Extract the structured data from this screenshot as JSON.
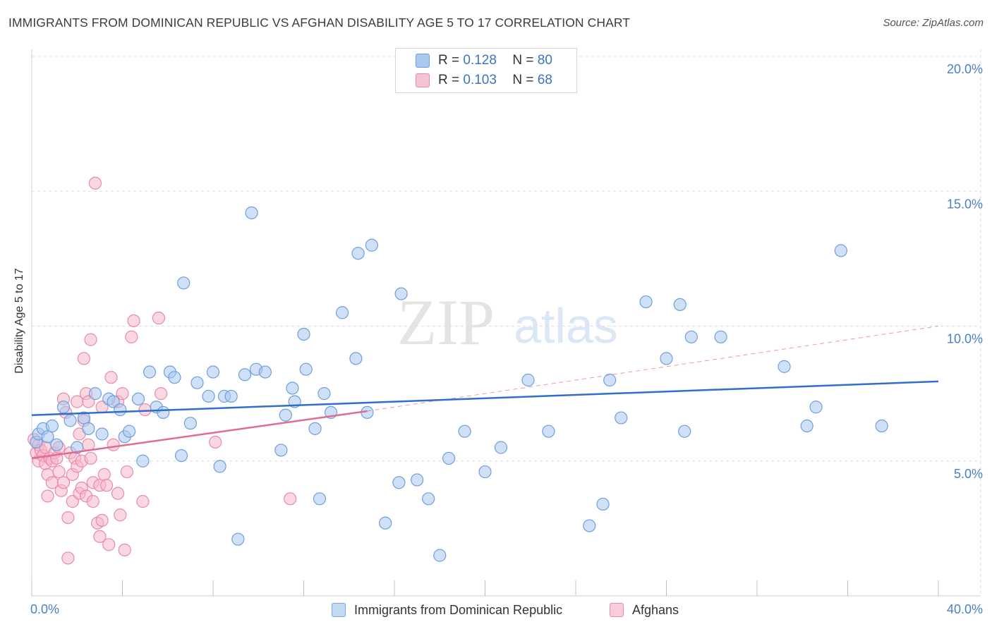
{
  "header": {
    "title": "IMMIGRANTS FROM DOMINICAN REPUBLIC VS AFGHAN DISABILITY AGE 5 TO 17 CORRELATION CHART",
    "source": "Source: ZipAtlas.com"
  },
  "watermark": {
    "zip": "ZIP",
    "atlas": "atlas"
  },
  "legend": {
    "rows": [
      {
        "r_label": "R =",
        "r_value": "0.128",
        "n_label": "N =",
        "n_value": "80"
      },
      {
        "r_label": "R =",
        "r_value": "0.103",
        "n_label": "N =",
        "n_value": "68"
      }
    ]
  },
  "bottom_legend": {
    "series1": "Immigrants from Dominican Republic",
    "series2": "Afghans"
  },
  "colors": {
    "blue_fill": "#aac8f0",
    "blue_stroke": "#6f9fdc",
    "blue_line": "#2f6fc9",
    "pink_fill": "#f5b8cb",
    "pink_stroke": "#e98aa8",
    "pink_line": "#e06b93",
    "grid": "#dddddd",
    "axis_text": "#4a7fc8"
  },
  "chart_data": {
    "type": "scatter",
    "title": "IMMIGRANTS FROM DOMINICAN REPUBLIC VS AFGHAN DISABILITY AGE 5 TO 17 CORRELATION CHART",
    "xlabel": "",
    "ylabel": "Disability Age 5 to 17",
    "xlim": [
      0,
      40
    ],
    "ylim": [
      0,
      20.5
    ],
    "x_tick_labels": [
      "0.0%",
      "40.0%"
    ],
    "y_ticks": [
      5,
      10,
      15,
      20
    ],
    "y_tick_labels": [
      "5.0%",
      "10.0%",
      "15.0%",
      "20.0%"
    ],
    "grid": true,
    "series": [
      {
        "name": "Immigrants from Dominican Republic",
        "r": 0.128,
        "n": 80,
        "trend": {
          "x": [
            0,
            40
          ],
          "y": [
            6.7,
            7.95
          ]
        },
        "points": [
          [
            0.2,
            5.7
          ],
          [
            0.3,
            6.0
          ],
          [
            0.5,
            6.2
          ],
          [
            0.7,
            5.9
          ],
          [
            0.9,
            6.3
          ],
          [
            1.1,
            5.6
          ],
          [
            1.4,
            7.0
          ],
          [
            1.7,
            6.5
          ],
          [
            2.0,
            5.5
          ],
          [
            2.3,
            6.6
          ],
          [
            2.5,
            6.2
          ],
          [
            2.8,
            7.5
          ],
          [
            3.1,
            6.0
          ],
          [
            3.4,
            7.3
          ],
          [
            3.6,
            7.2
          ],
          [
            3.9,
            6.9
          ],
          [
            4.1,
            5.9
          ],
          [
            4.3,
            6.1
          ],
          [
            4.7,
            7.3
          ],
          [
            4.9,
            5.0
          ],
          [
            5.2,
            8.3
          ],
          [
            5.5,
            7.0
          ],
          [
            5.8,
            6.8
          ],
          [
            6.1,
            8.3
          ],
          [
            6.3,
            8.1
          ],
          [
            6.6,
            5.2
          ],
          [
            6.7,
            11.6
          ],
          [
            7.0,
            6.4
          ],
          [
            7.3,
            7.9
          ],
          [
            7.8,
            7.4
          ],
          [
            8.0,
            8.3
          ],
          [
            8.3,
            4.8
          ],
          [
            8.5,
            7.4
          ],
          [
            8.8,
            7.4
          ],
          [
            9.1,
            2.1
          ],
          [
            9.4,
            8.2
          ],
          [
            9.7,
            14.2
          ],
          [
            9.9,
            8.4
          ],
          [
            10.3,
            8.3
          ],
          [
            11.0,
            5.4
          ],
          [
            11.2,
            6.7
          ],
          [
            11.5,
            7.7
          ],
          [
            11.6,
            7.2
          ],
          [
            12.0,
            9.7
          ],
          [
            12.1,
            8.4
          ],
          [
            12.5,
            6.2
          ],
          [
            12.7,
            3.6
          ],
          [
            12.9,
            7.5
          ],
          [
            13.2,
            6.8
          ],
          [
            13.7,
            10.5
          ],
          [
            14.3,
            8.8
          ],
          [
            14.4,
            12.7
          ],
          [
            14.8,
            6.8
          ],
          [
            15.0,
            13.0
          ],
          [
            15.6,
            2.7
          ],
          [
            16.2,
            4.2
          ],
          [
            16.3,
            11.2
          ],
          [
            17.0,
            4.3
          ],
          [
            17.5,
            3.6
          ],
          [
            18.0,
            1.5
          ],
          [
            18.4,
            5.1
          ],
          [
            19.1,
            6.1
          ],
          [
            20.0,
            4.6
          ],
          [
            20.7,
            5.5
          ],
          [
            21.9,
            8.0
          ],
          [
            22.8,
            6.1
          ],
          [
            24.6,
            2.6
          ],
          [
            25.2,
            3.4
          ],
          [
            25.5,
            8.0
          ],
          [
            26.0,
            6.6
          ],
          [
            27.1,
            10.9
          ],
          [
            28.0,
            8.8
          ],
          [
            28.6,
            10.8
          ],
          [
            28.8,
            6.1
          ],
          [
            29.1,
            9.6
          ],
          [
            30.4,
            9.6
          ],
          [
            33.2,
            8.5
          ],
          [
            34.2,
            6.3
          ],
          [
            34.6,
            7.0
          ],
          [
            35.7,
            12.8
          ],
          [
            37.5,
            6.3
          ]
        ]
      },
      {
        "name": "Afghans",
        "r": 0.103,
        "n": 68,
        "trend": {
          "x": [
            0,
            14.8
          ],
          "y": [
            5.1,
            6.85
          ]
        },
        "trend_extension": {
          "x": [
            14.8,
            40
          ],
          "y": [
            6.85,
            10.0
          ]
        },
        "points": [
          [
            0.1,
            5.8
          ],
          [
            0.2,
            5.3
          ],
          [
            0.3,
            5.6
          ],
          [
            0.3,
            5.0
          ],
          [
            0.4,
            5.4
          ],
          [
            0.5,
            5.2
          ],
          [
            0.6,
            4.9
          ],
          [
            0.6,
            5.5
          ],
          [
            0.7,
            4.5
          ],
          [
            0.7,
            3.7
          ],
          [
            0.8,
            5.1
          ],
          [
            0.9,
            5.0
          ],
          [
            0.9,
            4.2
          ],
          [
            1.0,
            5.3
          ],
          [
            1.1,
            5.1
          ],
          [
            1.2,
            5.5
          ],
          [
            1.2,
            4.6
          ],
          [
            1.3,
            3.9
          ],
          [
            1.4,
            4.2
          ],
          [
            1.4,
            7.3
          ],
          [
            1.5,
            6.8
          ],
          [
            1.6,
            2.9
          ],
          [
            1.6,
            1.4
          ],
          [
            1.7,
            5.3
          ],
          [
            1.8,
            4.5
          ],
          [
            1.8,
            3.5
          ],
          [
            1.9,
            5.1
          ],
          [
            2.0,
            4.8
          ],
          [
            2.0,
            7.2
          ],
          [
            2.1,
            6.0
          ],
          [
            2.1,
            3.8
          ],
          [
            2.2,
            5.0
          ],
          [
            2.2,
            4.0
          ],
          [
            2.3,
            8.8
          ],
          [
            2.3,
            6.5
          ],
          [
            2.4,
            7.5
          ],
          [
            2.4,
            3.7
          ],
          [
            2.5,
            5.6
          ],
          [
            2.5,
            7.2
          ],
          [
            2.6,
            5.1
          ],
          [
            2.6,
            9.5
          ],
          [
            2.7,
            4.2
          ],
          [
            2.7,
            3.5
          ],
          [
            2.8,
            15.3
          ],
          [
            2.9,
            2.7
          ],
          [
            3.0,
            2.2
          ],
          [
            3.0,
            4.1
          ],
          [
            3.1,
            2.8
          ],
          [
            3.1,
            7.0
          ],
          [
            3.2,
            4.5
          ],
          [
            3.3,
            4.1
          ],
          [
            3.4,
            1.9
          ],
          [
            3.5,
            8.1
          ],
          [
            3.6,
            5.6
          ],
          [
            3.8,
            3.8
          ],
          [
            3.8,
            7.2
          ],
          [
            3.9,
            3.0
          ],
          [
            4.0,
            7.5
          ],
          [
            4.1,
            1.7
          ],
          [
            4.2,
            4.6
          ],
          [
            4.4,
            9.6
          ],
          [
            4.5,
            10.2
          ],
          [
            4.9,
            3.5
          ],
          [
            5.0,
            6.9
          ],
          [
            5.6,
            10.3
          ],
          [
            5.7,
            7.5
          ],
          [
            8.1,
            5.7
          ],
          [
            11.4,
            3.6
          ]
        ]
      }
    ]
  }
}
